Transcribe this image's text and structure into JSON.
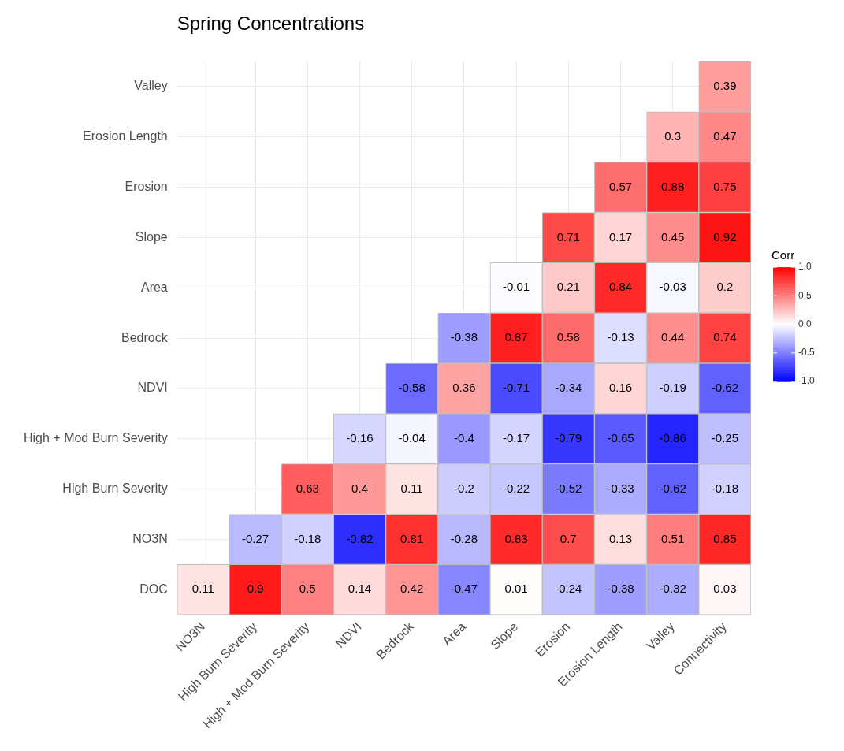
{
  "chart_data": {
    "type": "heatmap",
    "title": "Spring Concentrations",
    "categories": [
      "NO3N",
      "High Burn Severity",
      "High + Mod Burn Severity",
      "NDVI",
      "Bedrock",
      "Area",
      "Slope",
      "Erosion",
      "Erosion Length",
      "Valley",
      "Connectivity"
    ],
    "y_categories": [
      "Valley",
      "Erosion Length",
      "Erosion",
      "Slope",
      "Area",
      "Bedrock",
      "NDVI",
      "High + Mod Burn Severity",
      "High Burn Severity",
      "NO3N",
      "DOC"
    ],
    "cells": [
      [
        null,
        null,
        null,
        null,
        null,
        null,
        null,
        null,
        null,
        null,
        0.39
      ],
      [
        null,
        null,
        null,
        null,
        null,
        null,
        null,
        null,
        null,
        0.3,
        0.47
      ],
      [
        null,
        null,
        null,
        null,
        null,
        null,
        null,
        null,
        0.57,
        0.88,
        0.75
      ],
      [
        null,
        null,
        null,
        null,
        null,
        null,
        null,
        0.71,
        0.17,
        0.45,
        0.92
      ],
      [
        null,
        null,
        null,
        null,
        null,
        null,
        -0.01,
        0.21,
        0.84,
        -0.03,
        0.2
      ],
      [
        null,
        null,
        null,
        null,
        null,
        -0.38,
        0.87,
        0.58,
        -0.13,
        0.44,
        0.74
      ],
      [
        null,
        null,
        null,
        null,
        -0.58,
        0.36,
        -0.71,
        -0.34,
        0.16,
        -0.19,
        -0.62
      ],
      [
        null,
        null,
        null,
        -0.16,
        -0.04,
        -0.4,
        -0.17,
        -0.79,
        -0.65,
        -0.86,
        -0.25
      ],
      [
        null,
        null,
        0.63,
        0.4,
        0.11,
        -0.2,
        -0.22,
        -0.52,
        -0.33,
        -0.62,
        -0.18
      ],
      [
        null,
        -0.27,
        -0.18,
        -0.82,
        0.81,
        -0.28,
        0.83,
        0.7,
        0.13,
        0.51,
        0.85
      ],
      [
        0.11,
        0.9,
        0.5,
        0.14,
        0.42,
        -0.47,
        0.01,
        -0.24,
        -0.38,
        -0.32,
        0.03
      ]
    ],
    "clabel": "Corr",
    "clim": [
      -1,
      1
    ],
    "cticks": [
      {
        "value": -1,
        "label": "-1.0"
      },
      {
        "value": -0.5,
        "label": "-0.5"
      },
      {
        "value": 0,
        "label": "0.0"
      },
      {
        "value": 0.5,
        "label": "0.5"
      },
      {
        "value": 1,
        "label": "1.0"
      }
    ],
    "grid": true,
    "data_labels": true
  }
}
